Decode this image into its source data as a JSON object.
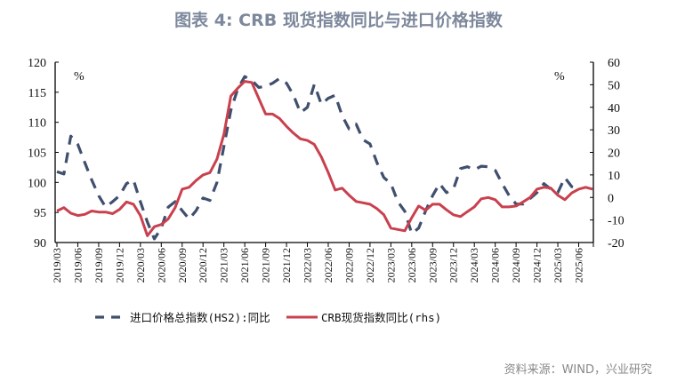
{
  "title": "图表 4:  CRB 现货指数同比与进口价格指数",
  "source": "资料来源：WIND，兴业研究",
  "chart_data": {
    "type": "line",
    "title": "图表 4:  CRB 现货指数同比与进口价格指数",
    "left_axis": {
      "unit": "%",
      "ylim": [
        90,
        120
      ],
      "ticks": [
        90,
        95,
        100,
        105,
        110,
        115,
        120
      ]
    },
    "right_axis": {
      "unit": "%",
      "ylim": [
        -20,
        60
      ],
      "ticks": [
        -20,
        -10,
        0,
        10,
        20,
        30,
        40,
        50,
        60
      ]
    },
    "x_tick_labels": [
      "2019/03",
      "2019/06",
      "2019/09",
      "2019/12",
      "2020/03",
      "2020/06",
      "2020/09",
      "2020/12",
      "2021/03",
      "2021/06",
      "2021/09",
      "2021/12",
      "2022/03",
      "2022/06",
      "2022/09",
      "2022/12",
      "2023/03",
      "2023/06",
      "2023/09",
      "2023/12",
      "2024/03",
      "2024/06",
      "2024/09",
      "2024/12",
      "2025/03",
      "2025/06"
    ],
    "x_start": "2019/03",
    "x_frequency": "monthly",
    "grid": false,
    "legend_placement": "bottom",
    "series": [
      {
        "name": "进口价格总指数(HS2):同比",
        "axis": "left",
        "style": "dashed",
        "color": "#3f4f6d",
        "values": [
          101.8,
          101.4,
          107.7,
          106.3,
          103.3,
          100.4,
          97.8,
          95.9,
          96.8,
          97.8,
          99.8,
          100.4,
          96.8,
          93.4,
          90.6,
          92.4,
          95.9,
          96.8,
          95.3,
          93.9,
          95.3,
          97.4,
          97,
          100,
          106,
          112,
          115.6,
          117.6,
          117,
          115.8,
          116,
          116.5,
          117.3,
          116.5,
          114.5,
          111.6,
          112.5,
          116.3,
          113,
          114,
          114.5,
          111.1,
          108.9,
          109.7,
          107.1,
          106.4,
          103.3,
          100.8,
          99.8,
          96.8,
          95.2,
          91.5,
          92.4,
          95.3,
          97.8,
          99.8,
          98.3,
          98.9,
          102.3,
          102.6,
          102.1,
          102.7,
          102.6,
          102,
          99.8,
          97.8,
          96.4,
          96.4,
          97.3,
          98.3,
          99.8,
          98.9,
          98.3,
          100.8,
          99.3,
          98.9
        ]
      },
      {
        "name": "CRB现货指数同比(rhs)",
        "axis": "right",
        "style": "solid",
        "color": "#c9404e",
        "values": [
          -6,
          -4.5,
          -7,
          -8,
          -7.5,
          -6,
          -6.5,
          -6.5,
          -7.2,
          -5.3,
          -2,
          -3,
          -8,
          -17,
          -13,
          -12,
          -9.5,
          -4.5,
          3.7,
          4.5,
          7.5,
          10,
          11,
          17,
          28,
          45,
          48.5,
          51.5,
          51,
          44,
          37,
          37,
          35,
          31.5,
          28.5,
          26,
          25.3,
          23.5,
          18,
          11,
          3.3,
          4.1,
          1,
          -1.8,
          -2.4,
          -3,
          -5,
          -7.7,
          -13.6,
          -14.2,
          -14.8,
          -9,
          -3.8,
          -5.7,
          -3,
          -3,
          -5.5,
          -7.7,
          -8.5,
          -6.3,
          -4.2,
          -0.6,
          0,
          -1,
          -4.2,
          -4.2,
          -3.8,
          -2,
          0,
          3.7,
          4.5,
          4.1,
          1,
          -1,
          2,
          3.7,
          4.5,
          3.7
        ]
      }
    ]
  }
}
